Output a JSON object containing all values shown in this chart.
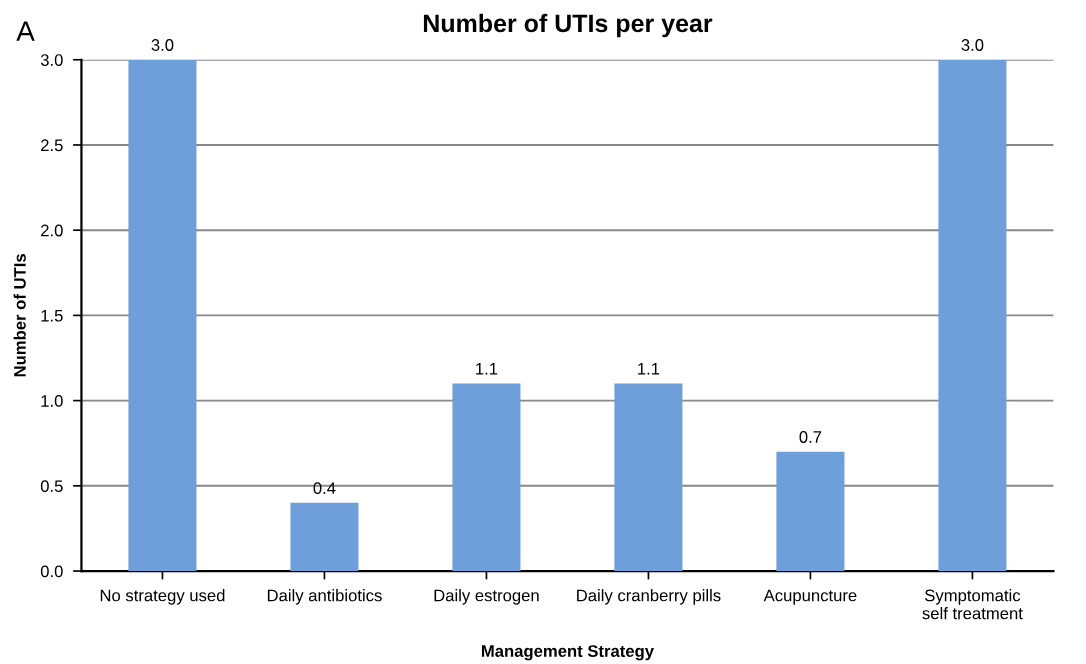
{
  "chart_data": {
    "type": "bar",
    "title": "Number of UTIs per year",
    "xlabel": "Management Strategy",
    "ylabel": "Number of UTIs",
    "categories": [
      "No strategy used",
      "Daily antibiotics",
      "Daily estrogen",
      "Daily cranberry pills",
      "Acupuncture",
      "Symptomatic self treatment"
    ],
    "values": [
      3.0,
      0.4,
      1.1,
      1.1,
      0.7,
      3.0
    ],
    "value_labels": [
      "3.0",
      "0.4",
      "1.1",
      "1.1",
      "0.7",
      "3.0"
    ],
    "color": "#6f9fdb",
    "ylim": [
      0,
      3.0
    ],
    "yticks": [
      {
        "value": 0,
        "label": "0.0"
      },
      {
        "value": 0.5,
        "label": "0.5"
      },
      {
        "value": 1.0,
        "label": "1.0"
      },
      {
        "value": 1.5,
        "label": "1.5"
      },
      {
        "value": 2.0,
        "label": "2.0"
      },
      {
        "value": 2.5,
        "label": "2.5"
      },
      {
        "value": 3.0,
        "label": "3.0"
      }
    ],
    "grid": "y",
    "annotations": [
      "A"
    ]
  }
}
